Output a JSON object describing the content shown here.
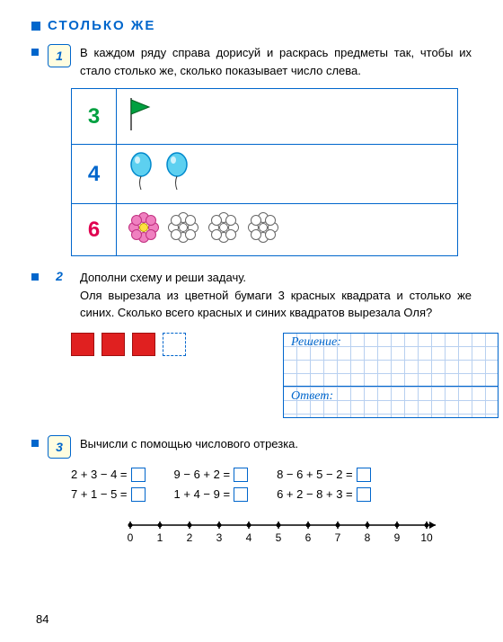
{
  "header": {
    "title": "СТОЛЬКО ЖЕ"
  },
  "task1": {
    "num": "1",
    "text": "В каждом ряду справа дорисуй и раскрась предметы так, чтобы их стало столько же, сколько показывает число слева.",
    "rows": [
      {
        "n": "3",
        "color": "#00a040"
      },
      {
        "n": "4",
        "color": "#0066cc"
      },
      {
        "n": "6",
        "color": "#e00050"
      }
    ]
  },
  "task2": {
    "num": "2",
    "text": "Дополни схему и реши задачу.",
    "problem": "Оля вырезала из цветной бумаги 3 красных квадрата и столько же синих. Сколько всего красных и синих квадратов вырезала Оля?",
    "solution_label": "Решение:",
    "answer_label": "Ответ:",
    "red_count": 3,
    "dash_count": 1,
    "red_color": "#e02020"
  },
  "task3": {
    "num": "3",
    "text": "Вычисли с помощью числового отрезка.",
    "cols": [
      [
        "2 + 3 − 4 =",
        "7 + 1 − 5 ="
      ],
      [
        "9 − 6 + 2 =",
        "1 + 4 − 9 ="
      ],
      [
        "8 − 6 + 5 − 2 =",
        "6 + 2 − 8 + 3 ="
      ]
    ],
    "numline": {
      "from": 0,
      "to": 10
    }
  },
  "page": "84",
  "colors": {
    "accent": "#0066cc",
    "grid": "#b8d0f0"
  }
}
